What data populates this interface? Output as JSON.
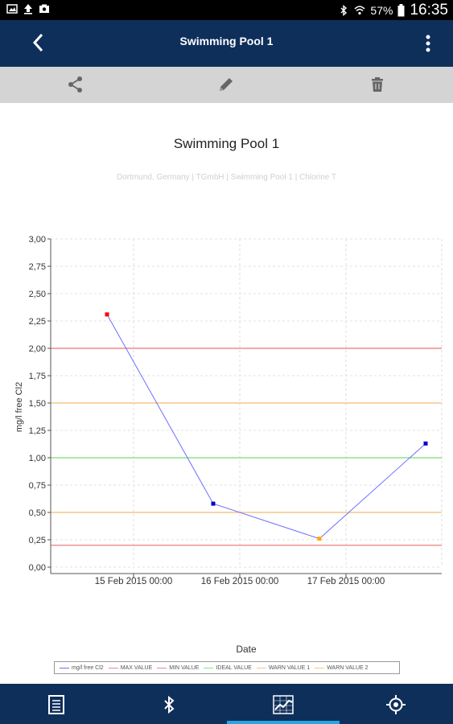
{
  "status_bar": {
    "battery": "57%",
    "time": "16:35"
  },
  "app_bar": {
    "title": "Swimming Pool 1"
  },
  "toolbar": {
    "share_icon": "share-icon",
    "edit_icon": "pencil-icon",
    "delete_icon": "trash-icon"
  },
  "chart_data": {
    "type": "line",
    "title": "Swimming Pool 1",
    "subtitle": "Dortmund, Germany | TGmbH | Swimming Pool 1 | Chlorine T",
    "xlabel": "Date",
    "ylabel": "mg/l free Cl2",
    "x_ticks": [
      "15 Feb 2015 00:00",
      "16 Feb 2015 00:00",
      "17 Feb 2015 00:00"
    ],
    "y_ticks": [
      "3,00",
      "2,75",
      "2,50",
      "2,25",
      "2,00",
      "1,75",
      "1,50",
      "1,25",
      "1,00",
      "0,75",
      "0,50",
      "0,25",
      "0,00"
    ],
    "ylim": [
      0,
      3
    ],
    "grid": true,
    "series": [
      {
        "name": "mg/l free Cl2",
        "color": "#6f6fff",
        "points": [
          {
            "x": "14 Feb 2015 18:00",
            "y": 2.31,
            "color": "#ff0000"
          },
          {
            "x": "15 Feb 2015 18:00",
            "y": 0.58,
            "color": "#0000cc"
          },
          {
            "x": "16 Feb 2015 18:00",
            "y": 0.26,
            "color": "#ffaa00"
          },
          {
            "x": "17 Feb 2015 18:00",
            "y": 1.13,
            "color": "#0000cc"
          }
        ]
      }
    ],
    "reference_lines": [
      {
        "name": "MAX VALUE",
        "y": 2.0,
        "color": "#f08a8a"
      },
      {
        "name": "MIN VALUE",
        "y": 0.2,
        "color": "#f08a8a"
      },
      {
        "name": "IDEAL VALUE",
        "y": 1.0,
        "color": "#8fe08f"
      },
      {
        "name": "WARN VALUE 1",
        "y": 1.5,
        "color": "#f6c68a"
      },
      {
        "name": "WARN VALUE 2",
        "y": 0.5,
        "color": "#f6c68a"
      }
    ],
    "legend_position": "bottom"
  },
  "legend": [
    {
      "label": "mg/l free Cl2",
      "color": "#6f6fff"
    },
    {
      "label": "MAX VALUE",
      "color": "#f08a8a"
    },
    {
      "label": "MIN VALUE",
      "color": "#f08a8a"
    },
    {
      "label": "IDEAL VALUE",
      "color": "#8fe08f"
    },
    {
      "label": "WARN VALUE 1",
      "color": "#f6c68a"
    },
    {
      "label": "WARN VALUE 2",
      "color": "#f6c68a"
    }
  ],
  "bottom_nav": {
    "items": [
      {
        "icon": "document-icon",
        "active": false
      },
      {
        "icon": "bluetooth-icon",
        "active": false
      },
      {
        "icon": "chart-icon",
        "active": true
      },
      {
        "icon": "location-icon",
        "active": false
      }
    ]
  }
}
